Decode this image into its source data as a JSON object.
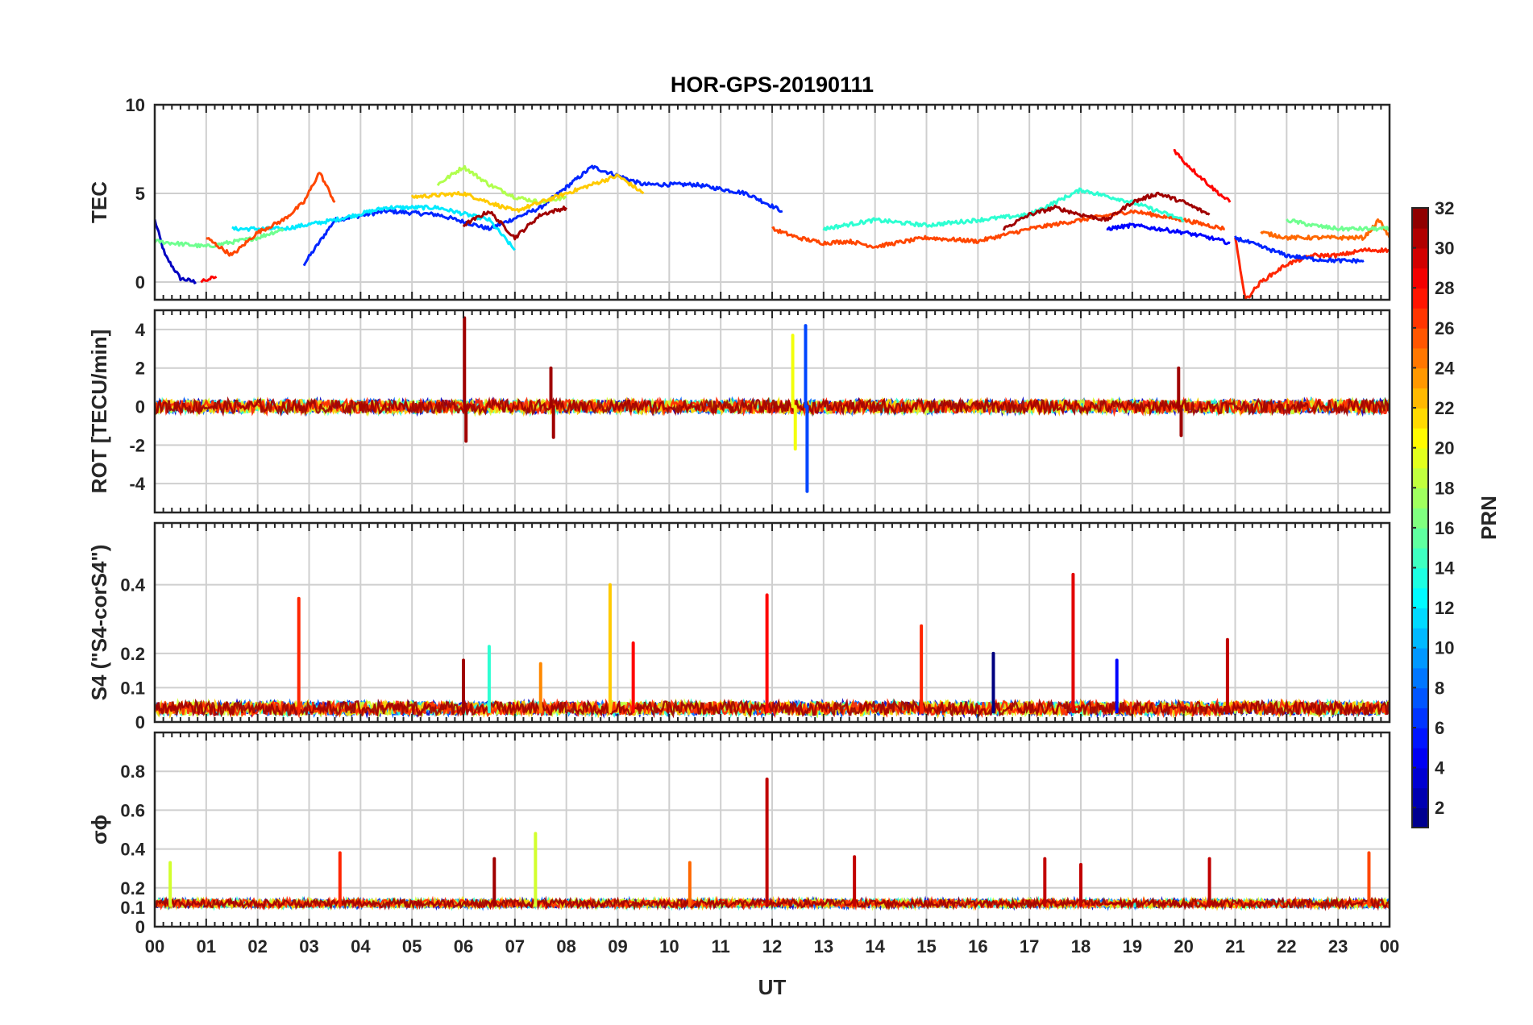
{
  "chart_data": {
    "type": "line",
    "title": "HOR-GPS-20190111",
    "xlabel": "UT",
    "xlim": [
      0,
      24
    ],
    "x_ticks": [
      "00",
      "01",
      "02",
      "03",
      "04",
      "05",
      "06",
      "07",
      "08",
      "09",
      "10",
      "11",
      "12",
      "13",
      "14",
      "15",
      "16",
      "17",
      "18",
      "19",
      "20",
      "21",
      "22",
      "23",
      "00"
    ],
    "colorbar": {
      "label": "PRN",
      "colormap": "jet",
      "range": [
        1,
        32
      ],
      "ticks": [
        "2",
        "4",
        "6",
        "8",
        "10",
        "12",
        "14",
        "16",
        "18",
        "20",
        "22",
        "24",
        "26",
        "28",
        "30",
        "32"
      ]
    },
    "panels": [
      {
        "ylabel": "TEC",
        "ylim": [
          -1,
          10
        ],
        "yticks": [
          "0",
          "5",
          "10"
        ],
        "series": [
          {
            "prn": 3,
            "x": [
              0.0,
              0.2,
              0.5,
              0.8
            ],
            "y": [
              3.5,
              1.5,
              0.2,
              0.0
            ]
          },
          {
            "prn": 6,
            "x": [
              2.9,
              3.5,
              4.5,
              5.5,
              6.5,
              7.5,
              8.5,
              9.5,
              10.5,
              11.5,
              12.2
            ],
            "y": [
              1.0,
              3.5,
              4.0,
              3.8,
              3.0,
              4.2,
              6.5,
              5.5,
              5.5,
              5.0,
              4.0
            ]
          },
          {
            "prn": 12,
            "x": [
              1.5,
              2.5,
              3.5,
              4.5,
              5.5,
              6.5,
              7.0
            ],
            "y": [
              3.0,
              3.0,
              3.5,
              4.2,
              4.2,
              3.5,
              1.8
            ]
          },
          {
            "prn": 16,
            "x": [
              0.0,
              1.0,
              2.0,
              2.5
            ],
            "y": [
              2.3,
              2.0,
              2.5,
              3.0
            ]
          },
          {
            "prn": 18,
            "x": [
              5.5,
              6.0,
              6.5,
              7.0,
              7.5,
              8.0
            ],
            "y": [
              5.5,
              6.5,
              5.5,
              4.8,
              4.5,
              4.8
            ]
          },
          {
            "prn": 22,
            "x": [
              5.0,
              6.0,
              7.0,
              8.0,
              9.0,
              9.5
            ],
            "y": [
              4.8,
              5.0,
              4.0,
              5.0,
              6.0,
              5.0
            ]
          },
          {
            "prn": 26,
            "x": [
              1.0,
              1.5,
              2.0,
              2.5,
              2.9,
              3.2,
              3.5
            ],
            "y": [
              2.5,
              1.5,
              2.8,
              3.5,
              4.5,
              6.2,
              4.5
            ]
          },
          {
            "prn": 28,
            "x": [
              0.9,
              1.2
            ],
            "y": [
              0.0,
              0.3
            ]
          },
          {
            "prn": 31,
            "x": [
              6.0,
              6.5,
              7.0,
              7.5,
              8.0
            ],
            "y": [
              3.2,
              4.0,
              2.5,
              3.8,
              4.2
            ]
          },
          {
            "prn": 26,
            "x": [
              12.0,
              12.5,
              13.0,
              13.5,
              14.0,
              15.0,
              16.0,
              17.0,
              18.0,
              19.0,
              20.0,
              20.8
            ],
            "y": [
              3.0,
              2.5,
              2.2,
              2.3,
              2.0,
              2.5,
              2.3,
              3.0,
              3.5,
              4.0,
              3.5,
              3.0
            ]
          },
          {
            "prn": 14,
            "x": [
              13.0,
              14.0,
              15.0,
              16.0,
              17.0,
              18.0,
              19.0,
              20.0
            ],
            "y": [
              3.0,
              3.5,
              3.2,
              3.5,
              3.8,
              5.2,
              4.5,
              3.5
            ]
          },
          {
            "prn": 31,
            "x": [
              16.5,
              17.0,
              17.5,
              18.0,
              18.5,
              19.0,
              19.5,
              20.0,
              20.5
            ],
            "y": [
              3.0,
              3.8,
              4.2,
              3.8,
              3.5,
              4.5,
              5.0,
              4.5,
              3.8
            ]
          },
          {
            "prn": 28,
            "x": [
              19.8,
              20.0,
              20.3,
              20.6,
              20.9
            ],
            "y": [
              7.5,
              6.8,
              6.0,
              5.2,
              4.5
            ]
          },
          {
            "prn": 5,
            "x": [
              18.5,
              19.0,
              19.5,
              20.0,
              20.5,
              20.9
            ],
            "y": [
              3.0,
              3.2,
              3.0,
              2.8,
              2.5,
              2.2
            ]
          },
          {
            "prn": 27,
            "x": [
              21.0,
              21.2,
              21.5,
              22.0,
              22.5,
              23.0,
              23.5,
              24.0
            ],
            "y": [
              2.5,
              -1.0,
              0.0,
              1.0,
              1.5,
              1.5,
              1.8,
              1.8
            ]
          },
          {
            "prn": 25,
            "x": [
              21.5,
              22.0,
              22.5,
              23.0,
              23.5,
              23.8,
              24.0
            ],
            "y": [
              2.8,
              2.5,
              2.5,
              2.5,
              2.5,
              3.5,
              2.5
            ]
          },
          {
            "prn": 16,
            "x": [
              22.0,
              22.5,
              23.0,
              23.5,
              24.0
            ],
            "y": [
              3.5,
              3.2,
              3.0,
              3.0,
              3.0
            ]
          },
          {
            "prn": 6,
            "x": [
              21.0,
              21.5,
              22.0,
              22.5,
              23.0,
              23.5
            ],
            "y": [
              2.5,
              2.0,
              1.5,
              1.3,
              1.2,
              1.2
            ]
          }
        ]
      },
      {
        "ylabel": "ROT [TECU/min]",
        "ylim": [
          -5.5,
          5
        ],
        "yticks": [
          "-4",
          "-2",
          "0",
          "2",
          "4"
        ],
        "spikes": [
          {
            "prn": 31,
            "x": 6.02,
            "y": 4.6
          },
          {
            "prn": 31,
            "x": 6.05,
            "y": -1.8
          },
          {
            "prn": 20,
            "x": 12.4,
            "y": 3.7
          },
          {
            "prn": 20,
            "x": 12.45,
            "y": -2.2
          },
          {
            "prn": 7,
            "x": 12.65,
            "y": 4.2
          },
          {
            "prn": 7,
            "x": 12.68,
            "y": -4.4
          },
          {
            "prn": 31,
            "x": 7.7,
            "y": 2.0
          },
          {
            "prn": 31,
            "x": 7.75,
            "y": -1.6
          },
          {
            "prn": 31,
            "x": 19.9,
            "y": 2.0
          },
          {
            "prn": 31,
            "x": 19.95,
            "y": -1.5
          }
        ]
      },
      {
        "ylabel": "S4 (\"S4-corS4\")",
        "ylim": [
          0,
          0.58
        ],
        "yticks": [
          "0",
          "0.1",
          "0.2",
          "0.4"
        ],
        "spikes": [
          {
            "prn": 27,
            "x": 2.8,
            "y": 0.36
          },
          {
            "prn": 22,
            "x": 8.85,
            "y": 0.4
          },
          {
            "prn": 28,
            "x": 11.9,
            "y": 0.37
          },
          {
            "prn": 29,
            "x": 17.85,
            "y": 0.43
          },
          {
            "prn": 27,
            "x": 14.9,
            "y": 0.28
          },
          {
            "prn": 1,
            "x": 16.3,
            "y": 0.2
          },
          {
            "prn": 14,
            "x": 6.5,
            "y": 0.22
          },
          {
            "prn": 24,
            "x": 7.5,
            "y": 0.17
          },
          {
            "prn": 28,
            "x": 9.3,
            "y": 0.23
          },
          {
            "prn": 5,
            "x": 18.7,
            "y": 0.18
          },
          {
            "prn": 30,
            "x": 20.85,
            "y": 0.24
          },
          {
            "prn": 31,
            "x": 6.0,
            "y": 0.18
          }
        ]
      },
      {
        "ylabel": "σϕ",
        "ylim": [
          0,
          1
        ],
        "yticks": [
          "0",
          "0.1",
          "0.2",
          "0.4",
          "0.6",
          "0.8"
        ],
        "spikes": [
          {
            "prn": 30,
            "x": 11.9,
            "y": 0.76
          },
          {
            "prn": 19,
            "x": 7.4,
            "y": 0.48
          },
          {
            "prn": 27,
            "x": 3.6,
            "y": 0.38
          },
          {
            "prn": 30,
            "x": 13.6,
            "y": 0.36
          },
          {
            "prn": 30,
            "x": 17.3,
            "y": 0.35
          },
          {
            "prn": 30,
            "x": 20.5,
            "y": 0.35
          },
          {
            "prn": 26,
            "x": 23.6,
            "y": 0.38
          },
          {
            "prn": 31,
            "x": 6.6,
            "y": 0.35
          },
          {
            "prn": 19,
            "x": 0.3,
            "y": 0.33
          },
          {
            "prn": 25,
            "x": 10.4,
            "y": 0.33
          },
          {
            "prn": 30,
            "x": 18.0,
            "y": 0.32
          }
        ]
      }
    ]
  }
}
